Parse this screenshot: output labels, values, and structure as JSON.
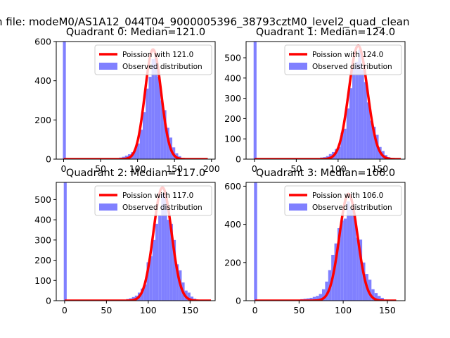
{
  "figure": {
    "suptitle": "n file: modeM0/AS1A12_044T04_9000005396_38793cztM0_level2_quad_clean"
  },
  "colors": {
    "curve": "#ff0000",
    "hist": "#8080ff",
    "axes": "#000000",
    "legend_edge": "#cccccc"
  },
  "chart_data": [
    {
      "type": "bar",
      "title": "Quadrant 0: Median=121.0",
      "xlim": [
        -10,
        205
      ],
      "ylim": [
        0,
        600
      ],
      "xticks": [
        0,
        50,
        100,
        150,
        200
      ],
      "yticks": [
        0,
        200,
        400,
        600
      ],
      "legend": {
        "position": "top-right",
        "curve_label": "Poission with 121.0",
        "hist_label": "Observed distribution"
      },
      "curve": {
        "mean": 121.0,
        "peak": 560,
        "x_start": 0,
        "x_end": 195
      },
      "histogram": {
        "bin_width": 4,
        "bins": [
          {
            "x": -1,
            "y": 600
          },
          {
            "x": 71,
            "y": 5
          },
          {
            "x": 75,
            "y": 8
          },
          {
            "x": 79,
            "y": 12
          },
          {
            "x": 83,
            "y": 18
          },
          {
            "x": 87,
            "y": 25
          },
          {
            "x": 91,
            "y": 35
          },
          {
            "x": 95,
            "y": 50
          },
          {
            "x": 99,
            "y": 80
          },
          {
            "x": 103,
            "y": 150
          },
          {
            "x": 107,
            "y": 240
          },
          {
            "x": 111,
            "y": 360
          },
          {
            "x": 115,
            "y": 420
          },
          {
            "x": 119,
            "y": 510
          },
          {
            "x": 123,
            "y": 520
          },
          {
            "x": 127,
            "y": 420
          },
          {
            "x": 131,
            "y": 300
          },
          {
            "x": 135,
            "y": 250
          },
          {
            "x": 139,
            "y": 160
          },
          {
            "x": 143,
            "y": 110
          },
          {
            "x": 147,
            "y": 60
          },
          {
            "x": 151,
            "y": 30
          },
          {
            "x": 155,
            "y": 15
          },
          {
            "x": 159,
            "y": 6
          },
          {
            "x": 163,
            "y": 3
          }
        ]
      }
    },
    {
      "type": "bar",
      "title": "Quadrant 1: Median=124.0",
      "xlim": [
        -10,
        180
      ],
      "ylim": [
        0,
        580
      ],
      "xticks": [
        0,
        50,
        100,
        150
      ],
      "yticks": [
        0,
        100,
        200,
        300,
        400,
        500
      ],
      "legend": {
        "position": "top-right",
        "curve_label": "Poission with 124.0",
        "hist_label": "Observed distribution"
      },
      "curve": {
        "mean": 124.0,
        "peak": 560,
        "x_start": 0,
        "x_end": 175
      },
      "histogram": {
        "bin_width": 3.5,
        "bins": [
          {
            "x": -1,
            "y": 580
          },
          {
            "x": 75,
            "y": 5
          },
          {
            "x": 78.5,
            "y": 8
          },
          {
            "x": 82,
            "y": 10
          },
          {
            "x": 85.5,
            "y": 15
          },
          {
            "x": 89,
            "y": 25
          },
          {
            "x": 92.5,
            "y": 35
          },
          {
            "x": 96,
            "y": 50
          },
          {
            "x": 99.5,
            "y": 60
          },
          {
            "x": 103,
            "y": 130
          },
          {
            "x": 106.5,
            "y": 150
          },
          {
            "x": 110,
            "y": 250
          },
          {
            "x": 113.5,
            "y": 350
          },
          {
            "x": 117,
            "y": 450
          },
          {
            "x": 120.5,
            "y": 480
          },
          {
            "x": 124,
            "y": 540
          },
          {
            "x": 127.5,
            "y": 440
          },
          {
            "x": 131,
            "y": 380
          },
          {
            "x": 134.5,
            "y": 280
          },
          {
            "x": 138,
            "y": 190
          },
          {
            "x": 141.5,
            "y": 160
          },
          {
            "x": 145,
            "y": 120
          },
          {
            "x": 148.5,
            "y": 60
          },
          {
            "x": 152,
            "y": 40
          },
          {
            "x": 155.5,
            "y": 20
          },
          {
            "x": 159,
            "y": 10
          },
          {
            "x": 162.5,
            "y": 5
          }
        ]
      }
    },
    {
      "type": "bar",
      "title": "Quadrant 2: Median=117.0",
      "xlim": [
        -10,
        180
      ],
      "ylim": [
        0,
        585
      ],
      "xticks": [
        0,
        50,
        100,
        150
      ],
      "yticks": [
        0,
        100,
        200,
        300,
        400,
        500
      ],
      "legend": {
        "position": "top-right",
        "curve_label": "Poission with 117.0",
        "hist_label": "Observed distribution"
      },
      "curve": {
        "mean": 117.0,
        "peak": 560,
        "x_start": 0,
        "x_end": 175
      },
      "histogram": {
        "bin_width": 3.5,
        "bins": [
          {
            "x": -1,
            "y": 585
          },
          {
            "x": 70,
            "y": 5
          },
          {
            "x": 73.5,
            "y": 8
          },
          {
            "x": 77,
            "y": 12
          },
          {
            "x": 80.5,
            "y": 18
          },
          {
            "x": 84,
            "y": 25
          },
          {
            "x": 87.5,
            "y": 40
          },
          {
            "x": 91,
            "y": 60
          },
          {
            "x": 94.5,
            "y": 80
          },
          {
            "x": 98,
            "y": 190
          },
          {
            "x": 101.5,
            "y": 220
          },
          {
            "x": 105,
            "y": 300
          },
          {
            "x": 108.5,
            "y": 380
          },
          {
            "x": 112,
            "y": 420
          },
          {
            "x": 115.5,
            "y": 530
          },
          {
            "x": 119,
            "y": 540
          },
          {
            "x": 122.5,
            "y": 400
          },
          {
            "x": 126,
            "y": 380
          },
          {
            "x": 129.5,
            "y": 300
          },
          {
            "x": 133,
            "y": 180
          },
          {
            "x": 136.5,
            "y": 150
          },
          {
            "x": 140,
            "y": 90
          },
          {
            "x": 143.5,
            "y": 50
          },
          {
            "x": 147,
            "y": 40
          },
          {
            "x": 150.5,
            "y": 20
          },
          {
            "x": 154,
            "y": 10
          }
        ]
      }
    },
    {
      "type": "bar",
      "title": "Quadrant 3: Median=106.0",
      "xlim": [
        -10,
        170
      ],
      "ylim": [
        0,
        620
      ],
      "xticks": [
        0,
        50,
        100,
        150
      ],
      "yticks": [
        0,
        200,
        400,
        600
      ],
      "legend": {
        "position": "top-right",
        "curve_label": "Poission with 106.0",
        "hist_label": "Observed distribution"
      },
      "curve": {
        "mean": 106.0,
        "peak": 560,
        "x_start": 0,
        "x_end": 160
      },
      "histogram": {
        "bin_width": 3.5,
        "bins": [
          {
            "x": -1,
            "y": 620
          },
          {
            "x": 48,
            "y": 5
          },
          {
            "x": 51.5,
            "y": 8
          },
          {
            "x": 55,
            "y": 10
          },
          {
            "x": 58.5,
            "y": 12
          },
          {
            "x": 62,
            "y": 15
          },
          {
            "x": 65.5,
            "y": 20
          },
          {
            "x": 69,
            "y": 25
          },
          {
            "x": 72.5,
            "y": 35
          },
          {
            "x": 76,
            "y": 60
          },
          {
            "x": 79.5,
            "y": 100
          },
          {
            "x": 83,
            "y": 160
          },
          {
            "x": 86.5,
            "y": 240
          },
          {
            "x": 90,
            "y": 300
          },
          {
            "x": 93.5,
            "y": 380
          },
          {
            "x": 97,
            "y": 420
          },
          {
            "x": 100.5,
            "y": 430
          },
          {
            "x": 104,
            "y": 520
          },
          {
            "x": 107.5,
            "y": 480
          },
          {
            "x": 111,
            "y": 450
          },
          {
            "x": 114.5,
            "y": 330
          },
          {
            "x": 118,
            "y": 320
          },
          {
            "x": 121.5,
            "y": 200
          },
          {
            "x": 125,
            "y": 140
          },
          {
            "x": 128.5,
            "y": 110
          },
          {
            "x": 132,
            "y": 60
          },
          {
            "x": 135.5,
            "y": 40
          },
          {
            "x": 139,
            "y": 25
          },
          {
            "x": 142.5,
            "y": 15
          },
          {
            "x": 146,
            "y": 6
          }
        ]
      }
    }
  ]
}
